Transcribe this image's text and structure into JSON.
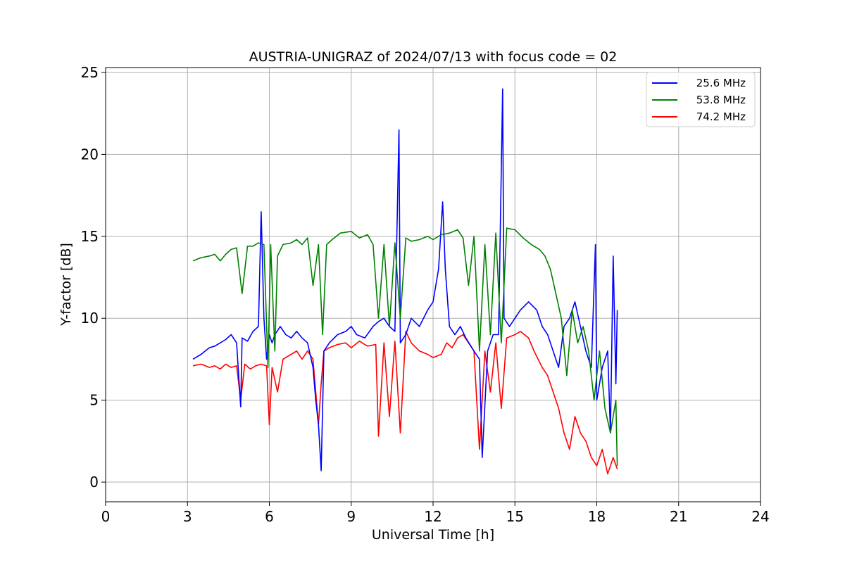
{
  "chart_data": {
    "type": "line",
    "title": "AUSTRIA-UNIGRAZ of 2024/07/13 with focus code = 02",
    "xlabel": "Universal Time [h]",
    "ylabel": "Y-factor [dB]",
    "xlim": [
      0,
      24
    ],
    "ylim": [
      -1.2,
      25.3
    ],
    "xticks": [
      0,
      3,
      6,
      9,
      12,
      15,
      18,
      21,
      24
    ],
    "yticks": [
      0,
      5,
      10,
      15,
      20,
      25
    ],
    "grid": true,
    "legend_position": "top-right",
    "series": [
      {
        "name": "25.6 MHz",
        "color": "#0000ff",
        "x": [
          3.2,
          3.5,
          3.8,
          4.0,
          4.2,
          4.4,
          4.6,
          4.8,
          4.95,
          5.0,
          5.2,
          5.4,
          5.6,
          5.7,
          5.8,
          5.9,
          6.0,
          6.1,
          6.2,
          6.4,
          6.6,
          6.8,
          7.0,
          7.2,
          7.4,
          7.6,
          7.7,
          7.8,
          7.9,
          8.0,
          8.2,
          8.5,
          8.8,
          9.0,
          9.2,
          9.5,
          9.8,
          10.0,
          10.2,
          10.4,
          10.6,
          10.75,
          10.8,
          11.0,
          11.2,
          11.5,
          11.8,
          12.0,
          12.2,
          12.35,
          12.45,
          12.6,
          12.8,
          13.0,
          13.2,
          13.5,
          13.7,
          13.8,
          14.0,
          14.2,
          14.4,
          14.55,
          14.6,
          14.8,
          15.0,
          15.2,
          15.5,
          15.8,
          16.0,
          16.2,
          16.4,
          16.6,
          16.8,
          17.0,
          17.2,
          17.4,
          17.6,
          17.8,
          17.95,
          18.0,
          18.2,
          18.4,
          18.5,
          18.6,
          18.7,
          18.75
        ],
        "y": [
          7.5,
          7.8,
          8.2,
          8.3,
          8.5,
          8.7,
          9.0,
          8.5,
          4.6,
          8.8,
          8.6,
          9.2,
          9.5,
          16.5,
          10.0,
          7.5,
          9.0,
          8.5,
          9.0,
          9.5,
          9.0,
          8.8,
          9.2,
          8.8,
          8.5,
          7.0,
          5.0,
          3.5,
          0.7,
          8.0,
          8.5,
          9.0,
          9.2,
          9.5,
          9.0,
          8.8,
          9.5,
          9.8,
          10.0,
          9.5,
          9.2,
          21.5,
          8.5,
          9.0,
          10.0,
          9.5,
          10.5,
          11.0,
          13.0,
          17.1,
          13.0,
          9.5,
          9.0,
          9.5,
          8.8,
          8.0,
          7.5,
          1.5,
          8.0,
          9.0,
          9.0,
          24.0,
          10.0,
          9.5,
          10.0,
          10.5,
          11.0,
          10.5,
          9.5,
          9.0,
          8.0,
          7.0,
          9.5,
          10.0,
          11.0,
          9.5,
          8.0,
          7.0,
          14.5,
          5.0,
          7.0,
          8.0,
          3.0,
          13.8,
          6.0,
          10.5
        ]
      },
      {
        "name": "53.8 MHz",
        "color": "#008000",
        "x": [
          3.2,
          3.5,
          3.8,
          4.0,
          4.2,
          4.4,
          4.6,
          4.8,
          5.0,
          5.2,
          5.4,
          5.6,
          5.8,
          5.95,
          6.05,
          6.2,
          6.3,
          6.5,
          6.8,
          7.0,
          7.2,
          7.4,
          7.6,
          7.8,
          7.95,
          8.1,
          8.3,
          8.6,
          9.0,
          9.3,
          9.6,
          9.8,
          10.0,
          10.2,
          10.4,
          10.6,
          10.8,
          11.0,
          11.2,
          11.5,
          11.8,
          12.0,
          12.3,
          12.6,
          12.9,
          13.1,
          13.3,
          13.5,
          13.7,
          13.9,
          14.1,
          14.3,
          14.5,
          14.7,
          15.0,
          15.3,
          15.6,
          15.9,
          16.1,
          16.3,
          16.5,
          16.7,
          16.9,
          17.1,
          17.3,
          17.5,
          17.7,
          17.9,
          18.1,
          18.3,
          18.5,
          18.7,
          18.75
        ],
        "y": [
          13.5,
          13.7,
          13.8,
          13.9,
          13.5,
          13.9,
          14.2,
          14.3,
          11.5,
          14.4,
          14.4,
          14.6,
          14.5,
          7.0,
          14.5,
          8.0,
          13.8,
          14.5,
          14.6,
          14.8,
          14.5,
          14.9,
          12.0,
          14.5,
          9.0,
          14.5,
          14.8,
          15.2,
          15.3,
          14.9,
          15.1,
          14.5,
          10.0,
          14.5,
          9.5,
          14.6,
          10.0,
          14.9,
          14.7,
          14.8,
          15.0,
          14.8,
          15.1,
          15.2,
          15.4,
          14.9,
          12.0,
          15.0,
          8.0,
          14.5,
          9.0,
          15.2,
          8.5,
          15.5,
          15.4,
          14.9,
          14.5,
          14.2,
          13.8,
          13.0,
          11.5,
          10.0,
          6.5,
          10.5,
          8.5,
          9.5,
          8.0,
          5.0,
          8.0,
          4.5,
          3.0,
          5.0,
          1.0
        ]
      },
      {
        "name": "74.2 MHz",
        "color": "#ff0000",
        "x": [
          3.2,
          3.5,
          3.8,
          4.0,
          4.2,
          4.4,
          4.6,
          4.8,
          4.95,
          5.1,
          5.3,
          5.5,
          5.7,
          5.9,
          6.0,
          6.1,
          6.3,
          6.5,
          6.8,
          7.0,
          7.2,
          7.4,
          7.6,
          7.8,
          7.9,
          8.0,
          8.2,
          8.5,
          8.8,
          9.0,
          9.3,
          9.6,
          9.9,
          10.0,
          10.2,
          10.4,
          10.6,
          10.8,
          11.0,
          11.2,
          11.5,
          11.8,
          12.0,
          12.3,
          12.5,
          12.7,
          12.9,
          13.1,
          13.3,
          13.5,
          13.7,
          13.9,
          14.1,
          14.3,
          14.5,
          14.7,
          15.0,
          15.2,
          15.5,
          15.7,
          16.0,
          16.2,
          16.4,
          16.6,
          16.8,
          17.0,
          17.2,
          17.4,
          17.6,
          17.8,
          18.0,
          18.2,
          18.4,
          18.6,
          18.75
        ],
        "y": [
          7.1,
          7.2,
          7.0,
          7.1,
          6.9,
          7.2,
          7.0,
          7.1,
          5.0,
          7.2,
          6.9,
          7.1,
          7.2,
          7.1,
          3.5,
          7.0,
          5.5,
          7.5,
          7.8,
          8.0,
          7.5,
          8.0,
          7.5,
          3.5,
          6.0,
          8.0,
          8.2,
          8.4,
          8.5,
          8.2,
          8.6,
          8.3,
          8.4,
          2.8,
          8.5,
          4.0,
          8.6,
          3.0,
          9.2,
          8.5,
          8.0,
          7.8,
          7.6,
          7.8,
          8.5,
          8.2,
          8.8,
          9.0,
          8.5,
          8.0,
          2.0,
          8.0,
          5.5,
          8.5,
          4.5,
          8.8,
          9.0,
          9.2,
          8.8,
          8.0,
          7.0,
          6.5,
          5.5,
          4.5,
          3.0,
          2.0,
          4.0,
          3.0,
          2.5,
          1.5,
          1.0,
          2.0,
          0.5,
          1.5,
          0.8
        ]
      }
    ]
  }
}
